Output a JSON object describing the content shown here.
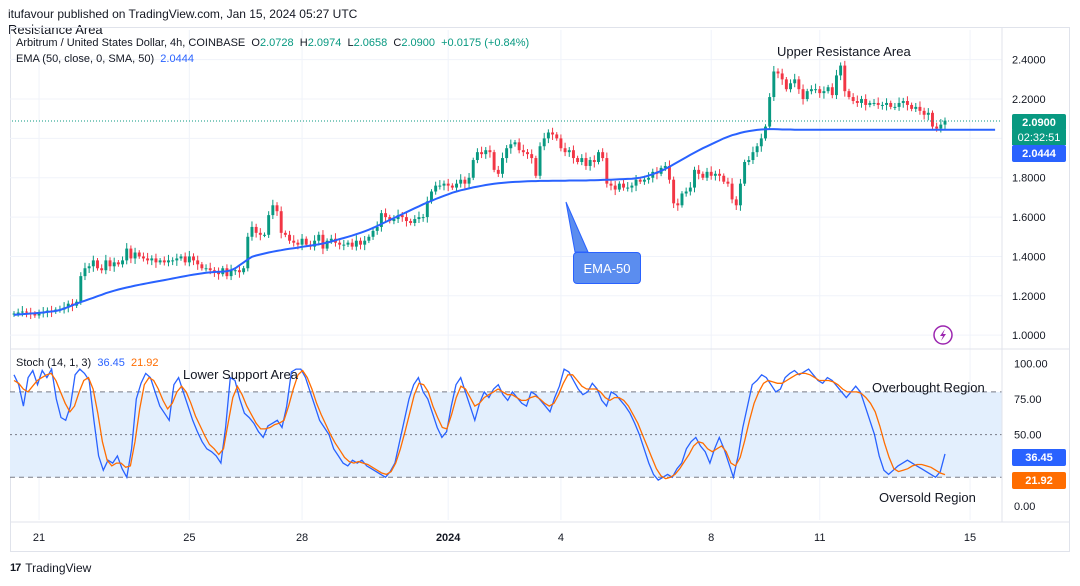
{
  "header": {
    "published": "itufavour published on TradingView.com, Jan 15, 2024 05:27 UTC",
    "resistance_label": "Resistance Area"
  },
  "legend": {
    "symbol": "Arbitrum / United States Dollar, 4h, COINBASE",
    "o_label": "O",
    "o": "2.0728",
    "h_label": "H",
    "h": "2.0974",
    "l_label": "L",
    "l": "2.0658",
    "c_label": "C",
    "c": "2.0900",
    "change": "+0.0175 (+0.84%)",
    "ema_title": "EMA (50, close, 0, SMA, 50)",
    "ema_value": "2.0444",
    "stoch_title": "Stoch (14, 1, 3)",
    "stoch_k": "36.45",
    "stoch_d": "21.92"
  },
  "annotations": {
    "upper_resistance": "Upper Resistance Area",
    "lower_support": "Lower Support Area",
    "overbought": "Overbought Region",
    "oversold": "Oversold Region",
    "ema_callout": "EMA-50"
  },
  "price_tags": {
    "last_price": "2.0900",
    "countdown": "02:32:51",
    "ema_price": "2.0444",
    "stoch_k": "36.45",
    "stoch_d": "21.92"
  },
  "footer": {
    "brand": "TradingView"
  },
  "colors": {
    "up": "#089981",
    "down": "#f23645",
    "ema": "#2962ff",
    "stoch_k": "#2962ff",
    "stoch_d": "#ff6d00",
    "stoch_band": "#e3effd"
  },
  "chart_data": [
    {
      "type": "candlestick",
      "title": "Arbitrum / United States Dollar, 4h, COINBASE",
      "ylim": [
        0.95,
        2.5
      ],
      "yticks": [
        "2.4000",
        "2.2000",
        "2.0000",
        "1.8000",
        "1.6000",
        "1.4000",
        "1.2000",
        "1.0000"
      ],
      "ytick_values": [
        2.4,
        2.2,
        2.0,
        1.8,
        1.6,
        1.4,
        1.2,
        1.0
      ],
      "xticks": [
        "21",
        "25",
        "28",
        "2024",
        "4",
        "8",
        "11",
        "15"
      ],
      "xtick_index": [
        6,
        42,
        69,
        104,
        131,
        167,
        193,
        229
      ],
      "last_close": 2.09,
      "close": [
        1.11,
        1.115,
        1.12,
        1.115,
        1.11,
        1.1,
        1.11,
        1.115,
        1.125,
        1.12,
        1.13,
        1.13,
        1.14,
        1.16,
        1.15,
        1.17,
        1.3,
        1.34,
        1.35,
        1.38,
        1.34,
        1.33,
        1.38,
        1.35,
        1.37,
        1.36,
        1.38,
        1.44,
        1.39,
        1.42,
        1.4,
        1.39,
        1.38,
        1.39,
        1.37,
        1.38,
        1.37,
        1.38,
        1.38,
        1.39,
        1.4,
        1.37,
        1.4,
        1.38,
        1.36,
        1.34,
        1.34,
        1.33,
        1.32,
        1.31,
        1.34,
        1.3,
        1.33,
        1.33,
        1.32,
        1.34,
        1.5,
        1.55,
        1.52,
        1.51,
        1.51,
        1.61,
        1.66,
        1.63,
        1.52,
        1.51,
        1.48,
        1.47,
        1.46,
        1.49,
        1.46,
        1.45,
        1.48,
        1.51,
        1.44,
        1.48,
        1.49,
        1.47,
        1.46,
        1.46,
        1.47,
        1.45,
        1.48,
        1.46,
        1.48,
        1.5,
        1.53,
        1.55,
        1.62,
        1.6,
        1.58,
        1.59,
        1.61,
        1.6,
        1.58,
        1.57,
        1.59,
        1.6,
        1.6,
        1.68,
        1.73,
        1.76,
        1.76,
        1.77,
        1.76,
        1.75,
        1.77,
        1.79,
        1.77,
        1.8,
        1.89,
        1.93,
        1.92,
        1.94,
        1.93,
        1.84,
        1.82,
        1.9,
        1.95,
        1.97,
        1.98,
        1.94,
        1.93,
        1.92,
        1.9,
        1.81,
        1.96,
        2.0,
        2.03,
        2.02,
        2.0,
        1.95,
        1.93,
        1.94,
        1.9,
        1.88,
        1.9,
        1.86,
        1.89,
        1.88,
        1.93,
        1.9,
        1.77,
        1.76,
        1.74,
        1.77,
        1.75,
        1.75,
        1.76,
        1.79,
        1.78,
        1.79,
        1.8,
        1.83,
        1.82,
        1.85,
        1.86,
        1.79,
        1.67,
        1.66,
        1.72,
        1.73,
        1.75,
        1.84,
        1.82,
        1.8,
        1.83,
        1.81,
        1.82,
        1.81,
        1.78,
        1.77,
        1.69,
        1.66,
        1.77,
        1.88,
        1.89,
        1.93,
        1.96,
        2.0,
        2.06,
        2.21,
        2.34,
        2.33,
        2.3,
        2.25,
        2.28,
        2.3,
        2.25,
        2.2,
        2.24,
        2.25,
        2.25,
        2.23,
        2.24,
        2.26,
        2.22,
        2.32,
        2.37,
        2.24,
        2.21,
        2.19,
        2.18,
        2.2,
        2.17,
        2.18,
        2.18,
        2.17,
        2.17,
        2.18,
        2.16,
        2.16,
        2.18,
        2.19,
        2.17,
        2.15,
        2.16,
        2.14,
        2.12,
        2.13,
        2.06,
        2.05,
        2.07,
        2.09
      ]
    },
    {
      "type": "line",
      "title": "EMA (50, close, 0, SMA, 50)",
      "ylim": [
        0.95,
        2.5
      ],
      "values": [
        1.103,
        1.105,
        1.107,
        1.108,
        1.11,
        1.111,
        1.113,
        1.115,
        1.118,
        1.12,
        1.123,
        1.128,
        1.135,
        1.143,
        1.152,
        1.16,
        1.168,
        1.175,
        1.183,
        1.19,
        1.198,
        1.205,
        1.213,
        1.22,
        1.226,
        1.232,
        1.237,
        1.242,
        1.247,
        1.252,
        1.256,
        1.26,
        1.264,
        1.268,
        1.272,
        1.276,
        1.28,
        1.284,
        1.288,
        1.292,
        1.296,
        1.3,
        1.304,
        1.308,
        1.311,
        1.314,
        1.317,
        1.319,
        1.321,
        1.322,
        1.323,
        1.325,
        1.33,
        1.34,
        1.355,
        1.37,
        1.385,
        1.398,
        1.405,
        1.41,
        1.415,
        1.42,
        1.424,
        1.428,
        1.432,
        1.436,
        1.439,
        1.442,
        1.445,
        1.449,
        1.452,
        1.455,
        1.458,
        1.462,
        1.466,
        1.47,
        1.476,
        1.482,
        1.488,
        1.494,
        1.5,
        1.506,
        1.513,
        1.52,
        1.528,
        1.536,
        1.545,
        1.555,
        1.565,
        1.575,
        1.585,
        1.595,
        1.605,
        1.615,
        1.625,
        1.635,
        1.645,
        1.655,
        1.665,
        1.674,
        1.683,
        1.692,
        1.7,
        1.708,
        1.716,
        1.724,
        1.73,
        1.736,
        1.741,
        1.746,
        1.751,
        1.755,
        1.759,
        1.763,
        1.766,
        1.769,
        1.772,
        1.774,
        1.776,
        1.778,
        1.779,
        1.78,
        1.781,
        1.782,
        1.783,
        1.783,
        1.784,
        1.784,
        1.784,
        1.785,
        1.785,
        1.785,
        1.785,
        1.786,
        1.786,
        1.786,
        1.786,
        1.786,
        1.787,
        1.787,
        1.788,
        1.789,
        1.79,
        1.79,
        1.791,
        1.792,
        1.793,
        1.794,
        1.795,
        1.797,
        1.8,
        1.805,
        1.811,
        1.818,
        1.826,
        1.835,
        1.845,
        1.856,
        1.868,
        1.88,
        1.892,
        1.904,
        1.916,
        1.928,
        1.939,
        1.95,
        1.96,
        1.97,
        1.98,
        1.99,
        2.0,
        2.008,
        2.016,
        2.022,
        2.028,
        2.033,
        2.037,
        2.04,
        2.043,
        2.045,
        2.046,
        2.047,
        2.047,
        2.046,
        2.045,
        2.045,
        2.045,
        2.0444,
        2.0444,
        2.0444,
        2.0444,
        2.0444,
        2.0444,
        2.0444,
        2.0444,
        2.0444,
        2.0444,
        2.0444,
        2.0444,
        2.0444,
        2.0444,
        2.0444,
        2.0444,
        2.0444,
        2.0444,
        2.0444,
        2.0444,
        2.0444,
        2.0444,
        2.0444,
        2.0444,
        2.0444,
        2.0444,
        2.0444,
        2.0444,
        2.0444,
        2.0444,
        2.0444,
        2.0444,
        2.0444,
        2.0444,
        2.0444,
        2.0444,
        2.0444,
        2.0444,
        2.0444,
        2.0444,
        2.0444,
        2.0444,
        2.0444,
        2.0444,
        2.0444,
        2.0444,
        2.0444,
        2.0444,
        2.0444
      ]
    },
    {
      "type": "line",
      "title": "Stoch (14, 1, 3)",
      "ylim": [
        -10,
        108
      ],
      "yticks": [
        "100.00",
        "75.00",
        "50.00",
        "0.00"
      ],
      "ytick_values": [
        100,
        75,
        50,
        0
      ],
      "levels": [
        80,
        50,
        20
      ],
      "series": [
        {
          "name": "K",
          "values": [
            92,
            85,
            70,
            90,
            95,
            85,
            95,
            90,
            96,
            75,
            62,
            60,
            70,
            92,
            96,
            93,
            88,
            60,
            35,
            25,
            32,
            30,
            35,
            26,
            20,
            40,
            75,
            86,
            93,
            90,
            80,
            70,
            65,
            60,
            85,
            90,
            80,
            70,
            60,
            52,
            45,
            40,
            38,
            35,
            30,
            55,
            90,
            88,
            75,
            65,
            62,
            58,
            52,
            48,
            56,
            58,
            60,
            55,
            70,
            94,
            96,
            96,
            90,
            80,
            70,
            60,
            55,
            50,
            40,
            35,
            30,
            28,
            32,
            30,
            32,
            28,
            26,
            24,
            22,
            20,
            24,
            30,
            45,
            60,
            75,
            85,
            90,
            80,
            75,
            65,
            55,
            48,
            52,
            70,
            85,
            90,
            80,
            70,
            60,
            72,
            80,
            76,
            82,
            85,
            78,
            74,
            80,
            76,
            72,
            70,
            80,
            78,
            74,
            70,
            66,
            76,
            84,
            96,
            94,
            88,
            82,
            78,
            80,
            86,
            82,
            74,
            70,
            80,
            78,
            74,
            70,
            65,
            58,
            50,
            40,
            30,
            22,
            18,
            20,
            22,
            20,
            26,
            30,
            40,
            45,
            48,
            42,
            38,
            30,
            40,
            48,
            40,
            30,
            20,
            35,
            55,
            70,
            85,
            88,
            92,
            90,
            85,
            80,
            82,
            90,
            93,
            95,
            92,
            94,
            96,
            92,
            88,
            86,
            90,
            88,
            84,
            80,
            76,
            80,
            84,
            80,
            70,
            60,
            50,
            35,
            25,
            22,
            25,
            28,
            30,
            32,
            30,
            28,
            26,
            24,
            22,
            20,
            24,
            36.45
          ]
        },
        {
          "name": "D",
          "values": [
            88,
            86,
            82,
            80,
            84,
            88,
            90,
            92,
            93,
            88,
            80,
            72,
            66,
            70,
            80,
            88,
            90,
            82,
            65,
            45,
            32,
            28,
            30,
            30,
            27,
            28,
            45,
            68,
            85,
            90,
            88,
            82,
            74,
            68,
            72,
            80,
            84,
            80,
            72,
            63,
            56,
            49,
            43,
            40,
            36,
            40,
            58,
            76,
            84,
            78,
            70,
            64,
            58,
            54,
            54,
            55,
            57,
            58,
            60,
            70,
            82,
            92,
            95,
            90,
            82,
            72,
            64,
            57,
            50,
            44,
            39,
            34,
            31,
            30,
            31,
            30,
            29,
            27,
            25,
            23,
            22,
            24,
            30,
            40,
            52,
            65,
            78,
            86,
            85,
            80,
            70,
            62,
            55,
            54,
            64,
            76,
            84,
            82,
            76,
            70,
            72,
            76,
            78,
            80,
            82,
            80,
            78,
            78,
            76,
            74,
            74,
            76,
            77,
            75,
            72,
            70,
            72,
            78,
            86,
            92,
            92,
            88,
            84,
            82,
            82,
            82,
            80,
            76,
            74,
            76,
            76,
            74,
            70,
            64,
            58,
            50,
            42,
            34,
            26,
            21,
            19,
            20,
            22,
            26,
            31,
            36,
            42,
            45,
            44,
            40,
            38,
            40,
            42,
            38,
            30,
            28,
            34,
            46,
            60,
            72,
            80,
            86,
            88,
            87,
            86,
            86,
            88,
            90,
            92,
            93,
            93,
            92,
            90,
            88,
            88,
            88,
            87,
            85,
            82,
            80,
            80,
            80,
            79,
            76,
            72,
            66,
            56,
            44,
            34,
            26,
            24,
            25,
            26,
            28,
            29,
            29,
            28,
            27,
            25,
            23,
            21.92
          ]
        }
      ]
    }
  ]
}
